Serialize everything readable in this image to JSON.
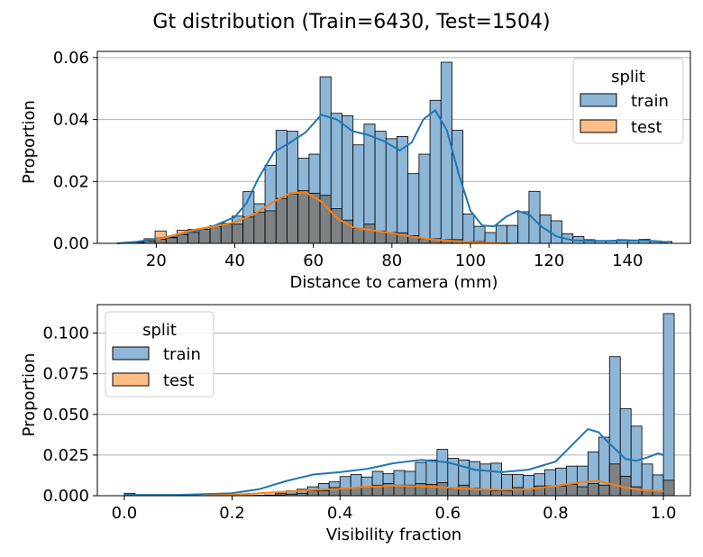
{
  "figure_title": "Gt distribution (Train=6430, Test=1504)",
  "colors": {
    "train_fill": "#8db6d7",
    "train_kde": "#1f77b4",
    "test_fill": "#ffbe86",
    "test_kde": "#ff7f0e",
    "overlap_fill": "#7d8285",
    "grid": "#b0b0b0",
    "bar_edge": "#000000"
  },
  "chart_data": [
    {
      "type": "histogram",
      "title": "",
      "xlabel": "Distance to camera (mm)",
      "ylabel": "Proportion",
      "xlim": [
        5,
        156
      ],
      "ylim": [
        0,
        0.062
      ],
      "xticks": [
        20,
        40,
        60,
        80,
        100,
        120,
        140
      ],
      "xtick_labels": [
        "20",
        "40",
        "60",
        "80",
        "100",
        "120",
        "140"
      ],
      "yticks": [
        0,
        0.02,
        0.04,
        0.06
      ],
      "ytick_labels": [
        "0.00",
        "0.02",
        "0.04",
        "0.06"
      ],
      "grid": "y",
      "legend": {
        "title": "split",
        "placement": "top-right",
        "entries": [
          "train",
          "test"
        ]
      },
      "bin_start": 11.3,
      "bin_width": 2.8,
      "series": [
        {
          "name": "train",
          "values": [
            0.0003,
            0.0005,
            0.0008,
            0.0013,
            0.0018,
            0.0028,
            0.0035,
            0.0045,
            0.0055,
            0.0065,
            0.0088,
            0.0167,
            0.0128,
            0.0252,
            0.0365,
            0.0362,
            0.0275,
            0.0288,
            0.0538,
            0.042,
            0.0412,
            0.0318,
            0.0385,
            0.0362,
            0.0338,
            0.0345,
            0.0225,
            0.0288,
            0.0462,
            0.0585,
            0.0365,
            0.0095,
            0.0055,
            0.0035,
            0.0058,
            0.0058,
            0.0102,
            0.0168,
            0.0092,
            0.0073,
            0.0031,
            0.0022,
            0.0012,
            0.0008,
            0.0008,
            0.0012,
            0.0008,
            0.0013,
            0.0008,
            0.0006
          ]
        },
        {
          "name": "test",
          "values": [
            0.0002,
            0.0003,
            0.0015,
            0.004,
            0.002,
            0.0042,
            0.0045,
            0.0046,
            0.0057,
            0.0062,
            0.0062,
            0.0085,
            0.01,
            0.0105,
            0.0145,
            0.016,
            0.017,
            0.0162,
            0.0155,
            0.0112,
            0.0075,
            0.0048,
            0.0062,
            0.004,
            0.0035,
            0.0034,
            0.0025,
            0.0015,
            0.0015,
            0.0012,
            0.0012,
            0.0006,
            0.0006,
            0.0003,
            0.0,
            0.0,
            0.0,
            0.0,
            0.0,
            0.0,
            0.0,
            0.0,
            0.0,
            0.0,
            0.0,
            0.0,
            0.0,
            0.0,
            0.0,
            0.0
          ]
        }
      ],
      "kde": [
        {
          "name": "train",
          "x": [
            10,
            15,
            20,
            25,
            30,
            35,
            40,
            43,
            46,
            50,
            54,
            58,
            62,
            66,
            70,
            74,
            78,
            82,
            85,
            88,
            91,
            94,
            97,
            100,
            103,
            106,
            109,
            112,
            115,
            118,
            122,
            126,
            130,
            135,
            140,
            145,
            150
          ],
          "y": [
            0.0,
            0.0005,
            0.0015,
            0.0025,
            0.004,
            0.0058,
            0.0085,
            0.013,
            0.021,
            0.0295,
            0.0325,
            0.0358,
            0.0415,
            0.04,
            0.0362,
            0.035,
            0.033,
            0.03,
            0.0325,
            0.04,
            0.043,
            0.0365,
            0.0225,
            0.0105,
            0.0058,
            0.0055,
            0.0085,
            0.0105,
            0.0092,
            0.0055,
            0.0022,
            0.001,
            0.0008,
            0.0008,
            0.001,
            0.0009,
            0.0004
          ]
        },
        {
          "name": "test",
          "x": [
            20,
            25,
            30,
            35,
            40,
            45,
            50,
            54,
            58,
            62,
            66,
            70,
            75,
            80,
            85,
            90,
            95,
            100,
            105,
            110
          ],
          "y": [
            0.0012,
            0.0028,
            0.0045,
            0.0055,
            0.0068,
            0.0095,
            0.0135,
            0.0162,
            0.0165,
            0.0135,
            0.0082,
            0.0052,
            0.0042,
            0.0033,
            0.0022,
            0.0013,
            0.0008,
            0.0004,
            0.0002,
            0.0
          ]
        }
      ]
    },
    {
      "type": "histogram",
      "title": "",
      "xlabel": "Visibility fraction",
      "ylabel": "Proportion",
      "xlim": [
        -0.05,
        1.05
      ],
      "ylim": [
        0,
        0.1175
      ],
      "xticks": [
        0.0,
        0.2,
        0.4,
        0.6,
        0.8,
        1.0
      ],
      "xtick_labels": [
        "0.0",
        "0.2",
        "0.4",
        "0.6",
        "0.8",
        "1.0"
      ],
      "yticks": [
        0,
        0.025,
        0.05,
        0.075,
        0.1
      ],
      "ytick_labels": [
        "0.000",
        "0.025",
        "0.050",
        "0.075",
        "0.100"
      ],
      "grid": "y",
      "legend": {
        "title": "split",
        "placement": "top-left",
        "entries": [
          "train",
          "test"
        ]
      },
      "bin_start": 0.0,
      "bin_width": 0.02,
      "series": [
        {
          "name": "train",
          "values": [
            0.0015,
            0.0,
            0.0,
            0.0,
            0.0,
            0.0,
            0.0,
            0.0,
            0.0,
            0.0,
            0.0,
            0.0002,
            0.0003,
            0.0005,
            0.0015,
            0.003,
            0.004,
            0.0055,
            0.0075,
            0.0085,
            0.0118,
            0.013,
            0.0115,
            0.015,
            0.0135,
            0.0155,
            0.015,
            0.0205,
            0.022,
            0.0285,
            0.023,
            0.022,
            0.021,
            0.0195,
            0.02,
            0.013,
            0.013,
            0.0125,
            0.0135,
            0.016,
            0.017,
            0.0182,
            0.0182,
            0.027,
            0.036,
            0.0855,
            0.0535,
            0.0428,
            0.0195,
            0.0128,
            0.112
          ]
        },
        {
          "name": "test",
          "values": [
            0.0,
            0.0,
            0.0,
            0.0,
            0.0,
            0.0,
            0.0,
            0.0,
            0.0,
            0.0,
            0.0,
            0.0,
            0.0,
            0.0,
            0.0005,
            0.001,
            0.0015,
            0.003,
            0.003,
            0.005,
            0.0045,
            0.005,
            0.0055,
            0.0065,
            0.0075,
            0.0065,
            0.0065,
            0.0075,
            0.007,
            0.008,
            0.0045,
            0.0065,
            0.0045,
            0.0035,
            0.003,
            0.003,
            0.005,
            0.004,
            0.006,
            0.006,
            0.006,
            0.007,
            0.0055,
            0.0075,
            0.0065,
            0.0195,
            0.012,
            0.0055,
            0.0035,
            0.003,
            0.0095
          ]
        }
      ],
      "kde": [
        {
          "name": "train",
          "x": [
            0.0,
            0.1,
            0.2,
            0.25,
            0.3,
            0.35,
            0.4,
            0.45,
            0.5,
            0.55,
            0.6,
            0.65,
            0.7,
            0.75,
            0.8,
            0.83,
            0.86,
            0.88,
            0.9,
            0.93,
            0.95,
            0.97,
            0.99,
            1.0
          ],
          "y": [
            0.0005,
            0.0005,
            0.0015,
            0.004,
            0.009,
            0.013,
            0.0145,
            0.0165,
            0.02,
            0.022,
            0.0205,
            0.016,
            0.0145,
            0.016,
            0.021,
            0.031,
            0.041,
            0.039,
            0.032,
            0.0225,
            0.0215,
            0.0235,
            0.026,
            0.025
          ]
        },
        {
          "name": "test",
          "x": [
            0.15,
            0.2,
            0.25,
            0.3,
            0.35,
            0.4,
            0.45,
            0.5,
            0.55,
            0.6,
            0.65,
            0.7,
            0.75,
            0.8,
            0.85,
            0.88,
            0.9,
            0.93,
            0.96,
            1.0
          ],
          "y": [
            0.0002,
            0.0005,
            0.0015,
            0.0025,
            0.0035,
            0.0042,
            0.0055,
            0.0062,
            0.0058,
            0.005,
            0.004,
            0.0035,
            0.004,
            0.006,
            0.0085,
            0.009,
            0.0075,
            0.005,
            0.0035,
            0.0028
          ]
        }
      ]
    }
  ]
}
